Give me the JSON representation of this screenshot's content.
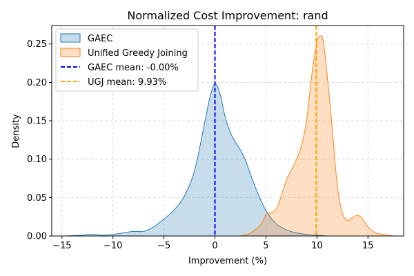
{
  "chart_data": {
    "type": "area",
    "title": "Normalized Cost Improvement: rand",
    "xlabel": "Improvement (%)",
    "ylabel": "Density",
    "xlim": [
      -16,
      18.5
    ],
    "ylim": [
      0,
      0.274
    ],
    "xticks": [
      -15,
      -10,
      -5,
      0,
      5,
      10,
      15
    ],
    "xtick_labels": [
      "−15",
      "−10",
      "−5",
      "0",
      "5",
      "10",
      "15"
    ],
    "yticks": [
      0,
      0.05,
      0.1,
      0.15,
      0.2,
      0.25
    ],
    "ytick_labels": [
      "0.00",
      "0.05",
      "0.10",
      "0.15",
      "0.20",
      "0.25"
    ],
    "grid": true,
    "legend_position": "top-left",
    "series": [
      {
        "name": "GAEC",
        "color": "#1f77b4",
        "fill": "#c6dbef",
        "x": [
          -14.7,
          -13,
          -12,
          -11,
          -10,
          -9,
          -8,
          -7,
          -6,
          -5,
          -4,
          -3,
          -2,
          -1,
          -0.5,
          0,
          0.5,
          1,
          1.5,
          2,
          2.5,
          3,
          4,
          5,
          6,
          7,
          8,
          9,
          10,
          11
        ],
        "values": [
          0.0,
          0.001,
          0.002,
          0.001,
          0.002,
          0.004,
          0.006,
          0.006,
          0.012,
          0.022,
          0.034,
          0.052,
          0.085,
          0.148,
          0.18,
          0.198,
          0.185,
          0.155,
          0.135,
          0.122,
          0.112,
          0.098,
          0.062,
          0.033,
          0.016,
          0.008,
          0.004,
          0.002,
          0.001,
          0.0
        ]
      },
      {
        "name": "Unified Greedy Joining",
        "color": "#ff7f0e",
        "fill": "#ffdbbf",
        "x": [
          2.5,
          3.5,
          4.5,
          5.0,
          5.5,
          6.0,
          6.5,
          7.0,
          7.5,
          8.0,
          8.5,
          9.0,
          9.5,
          10.0,
          10.3,
          10.6,
          11.0,
          11.5,
          12.0,
          12.5,
          13.0,
          13.5,
          14.0,
          14.5,
          15.0,
          15.5,
          16.0,
          17.5
        ],
        "values": [
          0.0,
          0.004,
          0.015,
          0.028,
          0.03,
          0.035,
          0.052,
          0.073,
          0.086,
          0.1,
          0.118,
          0.152,
          0.21,
          0.253,
          0.26,
          0.255,
          0.21,
          0.14,
          0.065,
          0.03,
          0.02,
          0.024,
          0.027,
          0.022,
          0.012,
          0.006,
          0.003,
          0.0
        ]
      }
    ],
    "mean_lines": [
      {
        "name": "GAEC mean: -0.00%",
        "x": 0.0,
        "color": "#0000ff"
      },
      {
        "name": "UGJ mean: 9.93%",
        "x": 9.93,
        "color": "#ffa500"
      }
    ]
  }
}
